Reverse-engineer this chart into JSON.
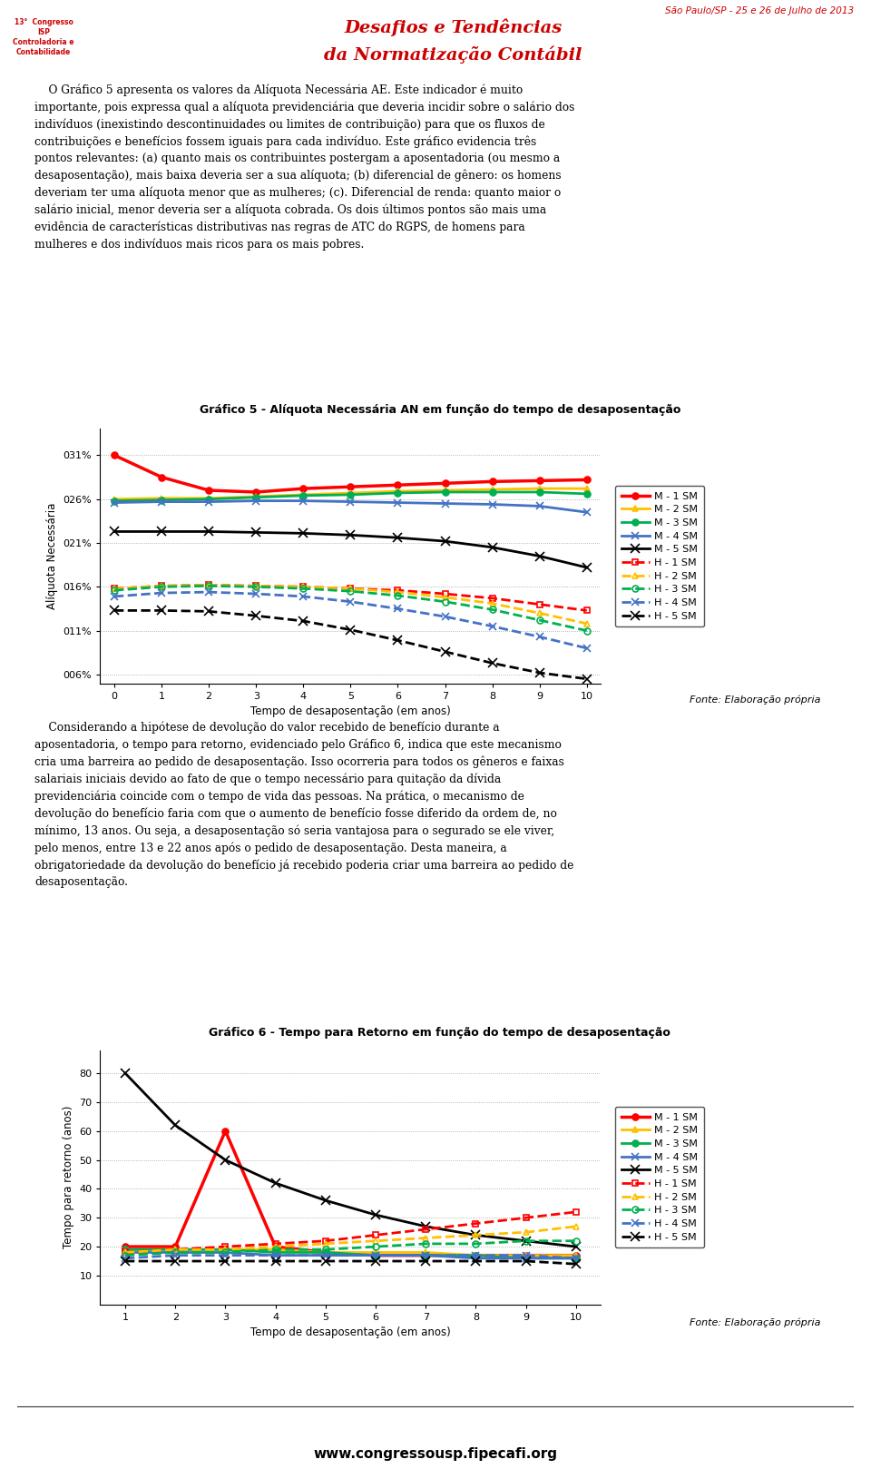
{
  "page_bg": "#ffffff",
  "header_top_right": "São Paulo/SP - 25 e 26 de Julho de 2013",
  "header_title1": "Desafios e Tendências",
  "header_title2": "da Normatização Contábil",
  "header_logo_lines": [
    "13°",
    "Congresso",
    "ISP",
    "Controladoria e",
    "Contabilidade"
  ],
  "body1_lines": [
    "    O Gráfico 5 apresenta os valores da Alíquota Necessária AE. Este indicador é muito",
    "importante, pois expressa qual a alíquota previdenciária que deveria incidir sobre o salário dos",
    "indivíduos (inexistindo descontinuidades ou limites de contribuição) para que os fluxos de",
    "contribuições e benefícios fossem iguais para cada indivíduo. Este gráfico evidencia três",
    "pontos relevantes: (a) quanto mais os contribuintes postergam a aposentadoria (ou mesmo a",
    "desaposentação), mais baixa deveria ser a sua alíquota; (b) diferencial de gênero: os homens",
    "deveriam ter uma alíquota menor que as mulheres; (c). Diferencial de renda: quanto maior o",
    "salário inicial, menor deveria ser a alíquota cobrada. Os dois últimos pontos são mais uma",
    "evidência de características distributivas nas regras de ATC do RGPS, de homens para",
    "mulheres e dos indivíduos mais ricos para os mais pobres."
  ],
  "chart1_title": "Gráfico 5 - Alíquota Necessária AN em função do tempo de desaposentação",
  "chart1_xlabel": "Tempo de desaposentação (em anos)",
  "chart1_ylabel": "Alíquota Necessária",
  "chart1_x": [
    0,
    1,
    2,
    3,
    4,
    5,
    6,
    7,
    8,
    9,
    10
  ],
  "chart1_xlim": [
    -0.3,
    10.3
  ],
  "chart1_ylim": [
    0.05,
    0.34
  ],
  "chart1_yticks": [
    0.06,
    0.11,
    0.16,
    0.21,
    0.26,
    0.31
  ],
  "chart1_ytick_labels": [
    "006%",
    "011%",
    "016%",
    "021%",
    "026%",
    "031%"
  ],
  "chart1_series_names": [
    "M - 1 SM",
    "M - 2 SM",
    "M - 3 SM",
    "M - 4 SM",
    "M - 5 SM",
    "H - 1 SM",
    "H - 2 SM",
    "H - 3 SM",
    "H - 4 SM",
    "H - 5 SM"
  ],
  "chart1_colors": [
    "#ff0000",
    "#ffc000",
    "#00b050",
    "#4472c4",
    "#000000",
    "#ff0000",
    "#ffc000",
    "#00b050",
    "#4472c4",
    "#000000"
  ],
  "chart1_linestyles": [
    "-",
    "-",
    "-",
    "-",
    "-",
    "--",
    "--",
    "--",
    "--",
    "--"
  ],
  "chart1_markers": [
    "o",
    "^",
    "o",
    "x",
    "x",
    "s",
    "^",
    "o",
    "x",
    "x"
  ],
  "chart1_markersizes": [
    5,
    5,
    5,
    6,
    7,
    5,
    5,
    5,
    6,
    7
  ],
  "chart1_linewidths": [
    2.5,
    2.0,
    2.0,
    2.0,
    2.0,
    2.0,
    2.0,
    2.0,
    2.0,
    2.0
  ],
  "chart1_values": [
    [
      0.31,
      0.285,
      0.27,
      0.268,
      0.272,
      0.274,
      0.276,
      0.278,
      0.28,
      0.281,
      0.282
    ],
    [
      0.26,
      0.261,
      0.261,
      0.263,
      0.265,
      0.267,
      0.269,
      0.27,
      0.271,
      0.272,
      0.272
    ],
    [
      0.258,
      0.259,
      0.26,
      0.262,
      0.264,
      0.265,
      0.267,
      0.268,
      0.268,
      0.268,
      0.266
    ],
    [
      0.256,
      0.257,
      0.257,
      0.258,
      0.258,
      0.257,
      0.256,
      0.255,
      0.254,
      0.252,
      0.245
    ],
    [
      0.223,
      0.223,
      0.223,
      0.222,
      0.221,
      0.219,
      0.216,
      0.212,
      0.205,
      0.195,
      0.182
    ],
    [
      0.158,
      0.161,
      0.162,
      0.161,
      0.16,
      0.158,
      0.156,
      0.152,
      0.147,
      0.14,
      0.133
    ],
    [
      0.158,
      0.161,
      0.162,
      0.161,
      0.16,
      0.158,
      0.154,
      0.148,
      0.141,
      0.13,
      0.118
    ],
    [
      0.156,
      0.16,
      0.161,
      0.16,
      0.158,
      0.155,
      0.15,
      0.143,
      0.134,
      0.122,
      0.11
    ],
    [
      0.149,
      0.153,
      0.154,
      0.152,
      0.149,
      0.143,
      0.135,
      0.126,
      0.115,
      0.103,
      0.09
    ],
    [
      0.133,
      0.133,
      0.132,
      0.127,
      0.121,
      0.111,
      0.099,
      0.086,
      0.073,
      0.062,
      0.055
    ]
  ],
  "body2_lines": [
    "    Considerando a hipótese de devolução do valor recebido de benefício durante a",
    "aposentadoria, o tempo para retorno, evidenciado pelo Gráfico 6, indica que este mecanismo",
    "cria uma barreira ao pedido de desaposentação. Isso ocorreria para todos os gêneros e faixas",
    "salariais iniciais devido ao fato de que o tempo necessário para quitação da dívida",
    "previdenciária coincide com o tempo de vida das pessoas. Na prática, o mecanismo de",
    "devolução do benefício faria com que o aumento de benefício fosse diferido da ordem de, no",
    "mínimo, 13 anos. Ou seja, a desaposentação só seria vantajosa para o segurado se ele viver,",
    "pelo menos, entre 13 e 22 anos após o pedido de desaposentação. Desta maneira, a",
    "obrigatoriedade da devolução do benefício já recebido poderia criar uma barreira ao pedido de",
    "desaposentação."
  ],
  "chart2_title": "Gráfico 6 - Tempo para Retorno em função do tempo de desaposentação",
  "chart2_xlabel": "Tempo de desaposentação (em anos)",
  "chart2_ylabel": "Tempo para retorno (anos)",
  "chart2_x": [
    1,
    2,
    3,
    4,
    5,
    6,
    7,
    8,
    9,
    10
  ],
  "chart2_xlim": [
    0.5,
    10.5
  ],
  "chart2_ylim": [
    0,
    88
  ],
  "chart2_yticks": [
    10,
    20,
    30,
    40,
    50,
    60,
    70,
    80
  ],
  "chart2_ytick_labels": [
    "10",
    "20",
    "30",
    "40",
    "50",
    "60",
    "70",
    "80"
  ],
  "chart2_series_names": [
    "M - 1 SM",
    "M - 2 SM",
    "M - 3 SM",
    "M - 4 SM",
    "M - 5 SM",
    "H - 1 SM",
    "H - 2 SM",
    "H - 3 SM",
    "H - 4 SM",
    "H - 5 SM"
  ],
  "chart2_colors": [
    "#ff0000",
    "#ffc000",
    "#00b050",
    "#4472c4",
    "#000000",
    "#ff0000",
    "#ffc000",
    "#00b050",
    "#4472c4",
    "#000000"
  ],
  "chart2_linestyles": [
    "-",
    "-",
    "-",
    "-",
    "-",
    "--",
    "--",
    "--",
    "--",
    "--"
  ],
  "chart2_markers": [
    "o",
    "^",
    "o",
    "x",
    "x",
    "s",
    "^",
    "o",
    "x",
    "x"
  ],
  "chart2_markersizes": [
    5,
    5,
    5,
    6,
    7,
    5,
    5,
    5,
    6,
    7
  ],
  "chart2_linewidths": [
    2.5,
    2.0,
    2.0,
    2.0,
    2.0,
    2.0,
    2.0,
    2.0,
    2.0,
    2.0
  ],
  "chart2_values": [
    [
      20,
      20,
      60,
      20,
      18,
      17,
      17,
      17,
      17,
      17
    ],
    [
      19,
      19,
      19,
      19,
      18,
      18,
      18,
      17,
      17,
      17
    ],
    [
      19,
      19,
      19,
      18,
      18,
      17,
      17,
      17,
      16,
      16
    ],
    [
      18,
      18,
      18,
      17,
      17,
      17,
      17,
      16,
      16,
      16
    ],
    [
      80,
      62,
      50,
      42,
      36,
      31,
      27,
      24,
      22,
      20
    ],
    [
      18,
      19,
      20,
      21,
      22,
      24,
      26,
      28,
      30,
      32
    ],
    [
      18,
      19,
      19,
      20,
      21,
      22,
      23,
      24,
      25,
      27
    ],
    [
      17,
      18,
      18,
      19,
      19,
      20,
      21,
      21,
      22,
      22
    ],
    [
      16,
      17,
      17,
      17,
      17,
      17,
      17,
      17,
      17,
      16
    ],
    [
      15,
      15,
      15,
      15,
      15,
      15,
      15,
      15,
      15,
      14
    ]
  ],
  "fonte_text": "Fonte: Elaboração própria",
  "bottom_url": "www.congressousp.fipecafi.org"
}
